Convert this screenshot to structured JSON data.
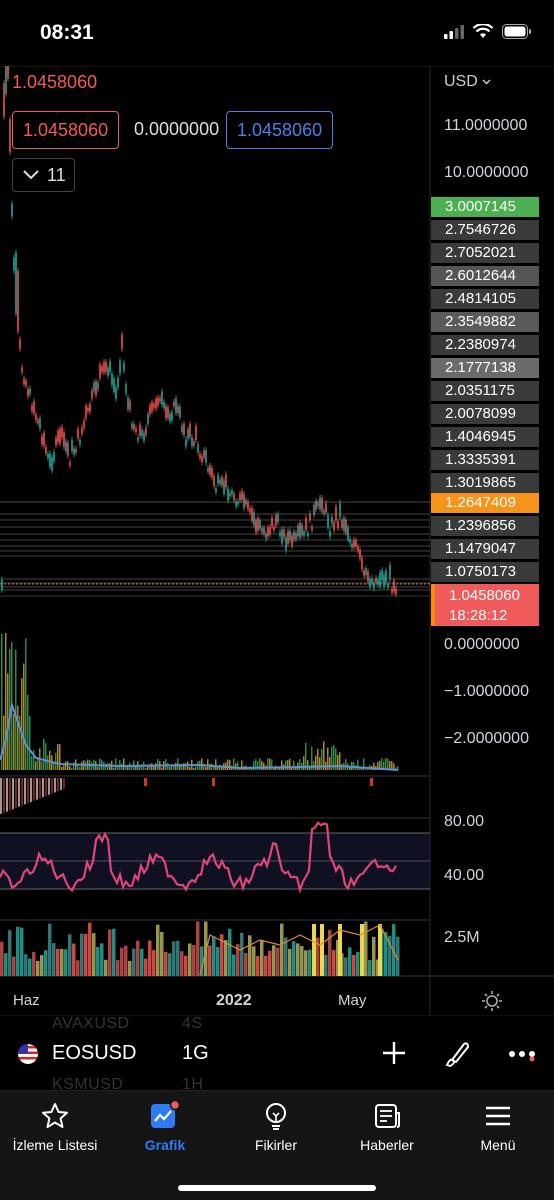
{
  "status": {
    "time": "08:31"
  },
  "chart": {
    "currency": "USD",
    "top_price": "1.0458060",
    "ohlc_boxes": [
      "1.0458060",
      "0.0000000",
      "1.0458060"
    ],
    "collapse_count": "11",
    "axis_labels": [
      "11.0000000",
      "10.0000000",
      "0.0000000",
      "−1.0000000",
      "−2.0000000",
      "80.00",
      "40.00",
      "2.5M"
    ],
    "price_tags": [
      {
        "value": "3.0007145",
        "color": "#4caf50"
      },
      {
        "value": "2.7546726",
        "color": "#3a3a3a"
      },
      {
        "value": "2.7052021",
        "color": "#3a3a3a"
      },
      {
        "value": "2.6012644",
        "color": "#555"
      },
      {
        "value": "2.4814105",
        "color": "#3a3a3a"
      },
      {
        "value": "2.3549882",
        "color": "#5a5a5a"
      },
      {
        "value": "2.2380974",
        "color": "#3a3a3a"
      },
      {
        "value": "2.1777138",
        "color": "#6a6a6a"
      },
      {
        "value": "2.0351175",
        "color": "#3a3a3a"
      },
      {
        "value": "2.0078099",
        "color": "#3a3a3a"
      },
      {
        "value": "1.4046945",
        "color": "#3a3a3a"
      },
      {
        "value": "1.3335391",
        "color": "#3a3a3a"
      },
      {
        "value": "1.3019865",
        "color": "#3a3a3a"
      },
      {
        "value": "1.2647409",
        "color": "#f7931a"
      },
      {
        "value": "1.2396856",
        "color": "#3a3a3a"
      },
      {
        "value": "1.1479047",
        "color": "#3a3a3a"
      },
      {
        "value": "1.0750173",
        "color": "#3a3a3a"
      }
    ],
    "last_price": "1.0458060",
    "countdown": "18:28:12",
    "x_labels": [
      "Haz",
      "2022",
      "May"
    ]
  },
  "symbol_bar": {
    "ghost_top": "AVAXUSD",
    "ghost_top_interval": "4S",
    "ghost_bottom": "KSMUSD",
    "ghost_bottom_interval": "1H",
    "symbol": "EOSUSD",
    "interval": "1G"
  },
  "nav": [
    {
      "label": "İzleme Listesi",
      "icon": "star-icon"
    },
    {
      "label": "Grafik",
      "icon": "chart-icon",
      "active": true
    },
    {
      "label": "Fikirler",
      "icon": "lightbulb-icon"
    },
    {
      "label": "Haberler",
      "icon": "news-icon"
    },
    {
      "label": "Menü",
      "icon": "menu-icon"
    }
  ],
  "colors": {
    "up": "#26a69a",
    "down": "#ef5350",
    "rsi": "#e0457a",
    "accent": "#2f7bf5"
  }
}
